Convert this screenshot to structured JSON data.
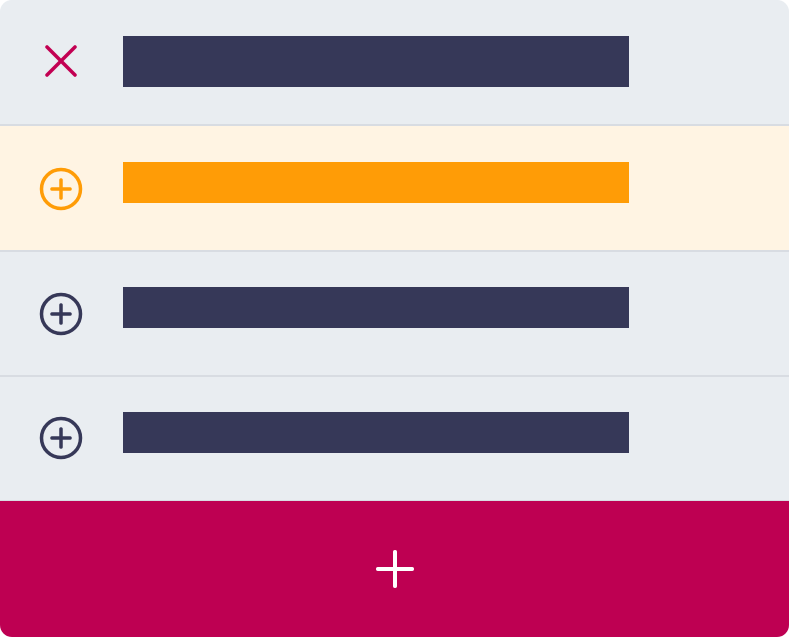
{
  "colors": {
    "panel_background": "#e9edf1",
    "divider": "#d8dce2",
    "item_bar": "#363858",
    "selected_row_background": "#fff4e3",
    "selected_accent": "#ff9c06",
    "remove_icon": "#c20052",
    "add_button_background": "#be0052",
    "add_button_icon": "#ffffff"
  },
  "list": {
    "items": [
      {
        "icon": "close-icon",
        "state": "removable"
      },
      {
        "icon": "plus-circle-icon",
        "state": "selected"
      },
      {
        "icon": "plus-circle-icon",
        "state": "default"
      },
      {
        "icon": "plus-circle-icon",
        "state": "default"
      }
    ]
  },
  "add_button": {
    "icon": "plus-icon"
  }
}
